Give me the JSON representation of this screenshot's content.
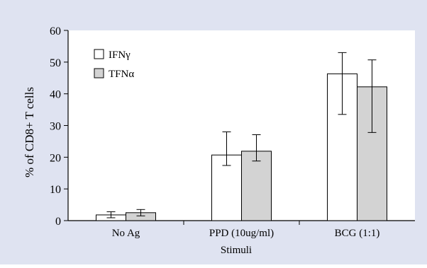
{
  "chart_data": {
    "type": "bar",
    "xlabel": "Stimuli",
    "ylabel": "% of CD8+ T cells",
    "ylim": [
      0,
      60
    ],
    "yticks": [
      0,
      10,
      20,
      30,
      40,
      50,
      60
    ],
    "categories": [
      "No Ag",
      "PPD (10ug/ml)",
      "BCG (1:1)"
    ],
    "series": [
      {
        "name": "IFNγ",
        "color": "#ffffff",
        "values": [
          1.8,
          20.7,
          46.3
        ],
        "error_low": [
          0.9,
          17.4,
          33.5
        ],
        "error_high": [
          2.8,
          28.0,
          53.0
        ]
      },
      {
        "name": "TFNα",
        "color": "#d3d3d3",
        "values": [
          2.5,
          21.9,
          42.2
        ],
        "error_low": [
          1.5,
          18.8,
          27.8
        ],
        "error_high": [
          3.5,
          27.1,
          50.7
        ]
      }
    ],
    "legend_position": "top-left",
    "grid": false,
    "colors": {
      "page_background": "#dfe3f1",
      "axis": "#000000"
    }
  }
}
